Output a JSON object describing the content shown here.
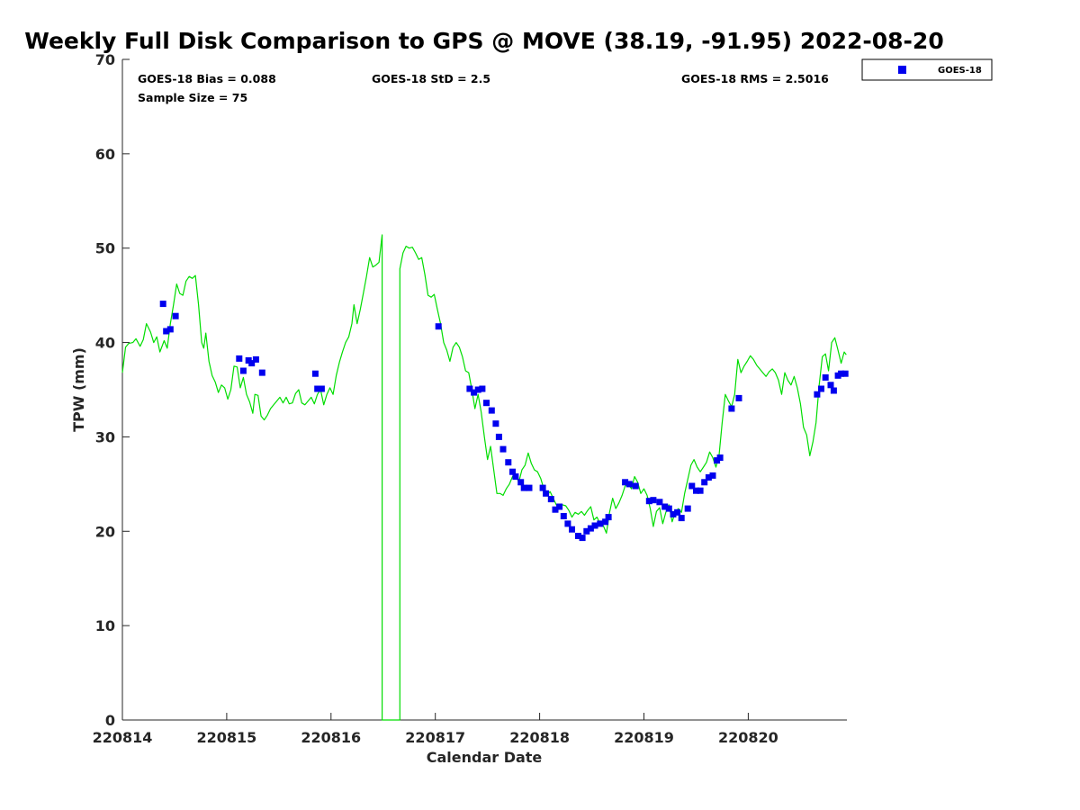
{
  "chart_data": {
    "type": "scatter",
    "title": "Weekly Full Disk Comparison to GPS @ MOVE (38.19, -91.95) 2022-08-20",
    "xlabel": "Calendar Date",
    "ylabel": "TPW (mm)",
    "xlim": [
      0,
      6.94
    ],
    "ylim": [
      0,
      70
    ],
    "x_ticks": [
      {
        "value": 0,
        "label": "220814"
      },
      {
        "value": 1,
        "label": "220815"
      },
      {
        "value": 2,
        "label": "220816"
      },
      {
        "value": 3,
        "label": "220817"
      },
      {
        "value": 4,
        "label": "220818"
      },
      {
        "value": 5,
        "label": "220819"
      },
      {
        "value": 6,
        "label": "220820"
      }
    ],
    "y_ticks": [
      0,
      10,
      20,
      30,
      40,
      50,
      60,
      70
    ],
    "stats": {
      "bias": "GOES-18 Bias = 0.088",
      "std": "GOES-18 StD = 2.5",
      "rms": "GOES-18 RMS = 2.5016",
      "sample": "Sample Size = 75"
    },
    "legend": {
      "label": "GOES-18",
      "location": "top-right outside"
    },
    "series": [
      {
        "name": "GPS",
        "style": "line",
        "color": "#00dd00",
        "points": [
          [
            0.0,
            36.8
          ],
          [
            0.03,
            39.5
          ],
          [
            0.06,
            39.9
          ],
          [
            0.1,
            40.0
          ],
          [
            0.13,
            40.4
          ],
          [
            0.17,
            39.6
          ],
          [
            0.2,
            40.3
          ],
          [
            0.23,
            42.0
          ],
          [
            0.27,
            41.1
          ],
          [
            0.3,
            40.0
          ],
          [
            0.33,
            40.6
          ],
          [
            0.36,
            39.0
          ],
          [
            0.4,
            40.2
          ],
          [
            0.43,
            39.4
          ],
          [
            0.46,
            42.0
          ],
          [
            0.49,
            44.0
          ],
          [
            0.52,
            46.2
          ],
          [
            0.55,
            45.2
          ],
          [
            0.58,
            45.0
          ],
          [
            0.61,
            46.5
          ],
          [
            0.64,
            47.0
          ],
          [
            0.67,
            46.8
          ],
          [
            0.7,
            47.1
          ],
          [
            0.73,
            44.0
          ],
          [
            0.76,
            40.0
          ],
          [
            0.78,
            39.4
          ],
          [
            0.8,
            41.0
          ],
          [
            0.83,
            38.0
          ],
          [
            0.86,
            36.5
          ],
          [
            0.89,
            35.8
          ],
          [
            0.92,
            34.7
          ],
          [
            0.95,
            35.5
          ],
          [
            0.98,
            35.2
          ],
          [
            1.01,
            34.0
          ],
          [
            1.04,
            35.0
          ],
          [
            1.07,
            37.5
          ],
          [
            1.1,
            37.4
          ],
          [
            1.13,
            35.2
          ],
          [
            1.16,
            36.3
          ],
          [
            1.19,
            34.5
          ],
          [
            1.22,
            33.7
          ],
          [
            1.25,
            32.5
          ],
          [
            1.27,
            34.5
          ],
          [
            1.3,
            34.4
          ],
          [
            1.33,
            32.2
          ],
          [
            1.36,
            31.8
          ],
          [
            1.39,
            32.3
          ],
          [
            1.42,
            33.0
          ],
          [
            1.45,
            33.4
          ],
          [
            1.48,
            33.8
          ],
          [
            1.51,
            34.2
          ],
          [
            1.54,
            33.6
          ],
          [
            1.57,
            34.2
          ],
          [
            1.6,
            33.5
          ],
          [
            1.63,
            33.6
          ],
          [
            1.66,
            34.6
          ],
          [
            1.69,
            35.0
          ],
          [
            1.72,
            33.6
          ],
          [
            1.75,
            33.4
          ],
          [
            1.78,
            33.8
          ],
          [
            1.81,
            34.2
          ],
          [
            1.84,
            33.5
          ],
          [
            1.87,
            34.5
          ],
          [
            1.9,
            35.0
          ],
          [
            1.93,
            33.4
          ],
          [
            1.96,
            34.5
          ],
          [
            1.99,
            35.2
          ],
          [
            2.02,
            34.5
          ],
          [
            2.05,
            36.5
          ],
          [
            2.08,
            37.9
          ],
          [
            2.11,
            39.0
          ],
          [
            2.14,
            40.0
          ],
          [
            2.17,
            40.6
          ],
          [
            2.2,
            42.0
          ],
          [
            2.22,
            44.0
          ],
          [
            2.25,
            42.0
          ],
          [
            2.28,
            43.5
          ],
          [
            2.31,
            45.2
          ],
          [
            2.34,
            47.0
          ],
          [
            2.37,
            49.0
          ],
          [
            2.4,
            48.0
          ],
          [
            2.43,
            48.2
          ],
          [
            2.46,
            48.5
          ],
          [
            2.49,
            51.4
          ],
          [
            2.49,
            0
          ],
          [
            2.66,
            0
          ],
          [
            2.66,
            47.8
          ],
          [
            2.69,
            49.5
          ],
          [
            2.72,
            50.2
          ],
          [
            2.75,
            50.0
          ],
          [
            2.78,
            50.1
          ],
          [
            2.81,
            49.5
          ],
          [
            2.84,
            48.8
          ],
          [
            2.87,
            49.0
          ],
          [
            2.9,
            47.2
          ],
          [
            2.93,
            45.0
          ],
          [
            2.96,
            44.8
          ],
          [
            2.99,
            45.1
          ],
          [
            3.02,
            43.5
          ],
          [
            3.05,
            42.0
          ],
          [
            3.08,
            40.0
          ],
          [
            3.11,
            39.2
          ],
          [
            3.14,
            38.0
          ],
          [
            3.17,
            39.5
          ],
          [
            3.2,
            40.0
          ],
          [
            3.23,
            39.5
          ],
          [
            3.26,
            38.5
          ],
          [
            3.29,
            37.0
          ],
          [
            3.32,
            36.8
          ],
          [
            3.35,
            35.0
          ],
          [
            3.38,
            33.0
          ],
          [
            3.41,
            34.5
          ],
          [
            3.44,
            32.6
          ],
          [
            3.47,
            30.0
          ],
          [
            3.5,
            27.6
          ],
          [
            3.53,
            29.0
          ],
          [
            3.56,
            26.5
          ],
          [
            3.59,
            24.0
          ],
          [
            3.62,
            24.0
          ],
          [
            3.65,
            23.8
          ],
          [
            3.68,
            24.5
          ],
          [
            3.71,
            25.0
          ],
          [
            3.74,
            25.8
          ],
          [
            3.77,
            26.0
          ],
          [
            3.8,
            25.2
          ],
          [
            3.83,
            26.5
          ],
          [
            3.86,
            27.0
          ],
          [
            3.89,
            28.3
          ],
          [
            3.92,
            27.2
          ],
          [
            3.95,
            26.5
          ],
          [
            3.98,
            26.3
          ],
          [
            4.01,
            25.6
          ],
          [
            4.04,
            24.5
          ],
          [
            4.07,
            23.8
          ],
          [
            4.1,
            24.2
          ],
          [
            4.13,
            23.5
          ],
          [
            4.16,
            22.8
          ],
          [
            4.19,
            22.5
          ],
          [
            4.22,
            22.8
          ],
          [
            4.25,
            22.7
          ],
          [
            4.28,
            22.2
          ],
          [
            4.31,
            21.5
          ],
          [
            4.34,
            22.0
          ],
          [
            4.37,
            21.8
          ],
          [
            4.4,
            22.1
          ],
          [
            4.43,
            21.7
          ],
          [
            4.46,
            22.2
          ],
          [
            4.49,
            22.6
          ],
          [
            4.52,
            21.2
          ],
          [
            4.55,
            21.5
          ],
          [
            4.58,
            20.8
          ],
          [
            4.61,
            20.6
          ],
          [
            4.64,
            19.8
          ],
          [
            4.67,
            22.0
          ],
          [
            4.7,
            23.5
          ],
          [
            4.73,
            22.4
          ],
          [
            4.76,
            23.0
          ],
          [
            4.79,
            23.8
          ],
          [
            4.82,
            24.8
          ],
          [
            4.85,
            25.0
          ],
          [
            4.88,
            24.5
          ],
          [
            4.91,
            25.8
          ],
          [
            4.94,
            25.2
          ],
          [
            4.97,
            24.0
          ],
          [
            5.0,
            24.5
          ],
          [
            5.03,
            23.8
          ],
          [
            5.06,
            22.4
          ],
          [
            5.09,
            20.5
          ],
          [
            5.12,
            22.1
          ],
          [
            5.15,
            22.5
          ],
          [
            5.18,
            20.8
          ],
          [
            5.21,
            22.0
          ],
          [
            5.24,
            22.8
          ],
          [
            5.27,
            21.0
          ],
          [
            5.3,
            22.0
          ],
          [
            5.33,
            22.4
          ],
          [
            5.36,
            22.0
          ],
          [
            5.39,
            24.0
          ],
          [
            5.42,
            25.5
          ],
          [
            5.45,
            27.0
          ],
          [
            5.48,
            27.6
          ],
          [
            5.51,
            26.8
          ],
          [
            5.54,
            26.3
          ],
          [
            5.57,
            26.8
          ],
          [
            5.6,
            27.3
          ],
          [
            5.63,
            28.4
          ],
          [
            5.66,
            27.8
          ],
          [
            5.69,
            26.8
          ],
          [
            5.72,
            28.0
          ],
          [
            5.75,
            31.5
          ],
          [
            5.78,
            34.5
          ],
          [
            5.81,
            33.8
          ],
          [
            5.84,
            33.2
          ],
          [
            5.87,
            34.5
          ],
          [
            5.9,
            38.2
          ],
          [
            5.93,
            36.8
          ],
          [
            5.96,
            37.5
          ],
          [
            5.99,
            38.0
          ],
          [
            6.02,
            38.6
          ],
          [
            6.05,
            38.2
          ],
          [
            6.08,
            37.6
          ],
          [
            6.11,
            37.2
          ],
          [
            6.14,
            36.8
          ],
          [
            6.17,
            36.4
          ],
          [
            6.2,
            36.9
          ],
          [
            6.23,
            37.2
          ],
          [
            6.26,
            36.8
          ],
          [
            6.29,
            36.0
          ],
          [
            6.32,
            34.5
          ],
          [
            6.35,
            36.8
          ],
          [
            6.38,
            36.0
          ],
          [
            6.41,
            35.5
          ],
          [
            6.44,
            36.4
          ],
          [
            6.47,
            35.2
          ],
          [
            6.5,
            33.5
          ],
          [
            6.53,
            31.0
          ],
          [
            6.56,
            30.2
          ],
          [
            6.59,
            28.0
          ],
          [
            6.62,
            29.5
          ],
          [
            6.65,
            31.5
          ],
          [
            6.68,
            35.5
          ],
          [
            6.71,
            38.5
          ],
          [
            6.74,
            38.8
          ],
          [
            6.77,
            37.0
          ],
          [
            6.8,
            40.0
          ],
          [
            6.83,
            40.5
          ],
          [
            6.86,
            39.2
          ],
          [
            6.89,
            37.8
          ],
          [
            6.92,
            39.0
          ],
          [
            6.94,
            38.7
          ]
        ]
      },
      {
        "name": "GOES-18",
        "style": "markers",
        "color": "#0000ee",
        "points": [
          [
            0.39,
            44.1
          ],
          [
            0.42,
            41.2
          ],
          [
            0.46,
            41.4
          ],
          [
            0.51,
            42.8
          ],
          [
            1.12,
            38.3
          ],
          [
            1.16,
            37.0
          ],
          [
            1.21,
            38.1
          ],
          [
            1.24,
            37.8
          ],
          [
            1.28,
            38.2
          ],
          [
            1.34,
            36.8
          ],
          [
            1.85,
            36.7
          ],
          [
            1.87,
            35.1
          ],
          [
            1.91,
            35.1
          ],
          [
            3.03,
            41.7
          ],
          [
            3.33,
            35.1
          ],
          [
            3.37,
            34.7
          ],
          [
            3.41,
            35.0
          ],
          [
            3.45,
            35.1
          ],
          [
            3.49,
            33.6
          ],
          [
            3.54,
            32.8
          ],
          [
            3.58,
            31.4
          ],
          [
            3.61,
            30.0
          ],
          [
            3.65,
            28.7
          ],
          [
            3.7,
            27.3
          ],
          [
            3.74,
            26.3
          ],
          [
            3.77,
            25.8
          ],
          [
            3.82,
            25.2
          ],
          [
            3.85,
            24.6
          ],
          [
            3.9,
            24.6
          ],
          [
            4.03,
            24.6
          ],
          [
            4.06,
            24.0
          ],
          [
            4.11,
            23.4
          ],
          [
            4.15,
            22.3
          ],
          [
            4.19,
            22.6
          ],
          [
            4.23,
            21.6
          ],
          [
            4.27,
            20.8
          ],
          [
            4.31,
            20.2
          ],
          [
            4.37,
            19.5
          ],
          [
            4.41,
            19.3
          ],
          [
            4.45,
            20.0
          ],
          [
            4.49,
            20.3
          ],
          [
            4.53,
            20.6
          ],
          [
            4.58,
            20.8
          ],
          [
            4.63,
            21.0
          ],
          [
            4.66,
            21.5
          ],
          [
            4.82,
            25.2
          ],
          [
            4.86,
            25.0
          ],
          [
            4.92,
            24.8
          ],
          [
            5.05,
            23.2
          ],
          [
            5.09,
            23.3
          ],
          [
            5.15,
            23.1
          ],
          [
            5.2,
            22.6
          ],
          [
            5.24,
            22.4
          ],
          [
            5.28,
            21.8
          ],
          [
            5.32,
            22.0
          ],
          [
            5.36,
            21.4
          ],
          [
            5.42,
            22.4
          ],
          [
            5.46,
            24.8
          ],
          [
            5.5,
            24.3
          ],
          [
            5.54,
            24.3
          ],
          [
            5.58,
            25.2
          ],
          [
            5.62,
            25.7
          ],
          [
            5.66,
            25.9
          ],
          [
            5.7,
            27.5
          ],
          [
            5.73,
            27.8
          ],
          [
            5.84,
            33.0
          ],
          [
            5.91,
            34.1
          ],
          [
            6.66,
            34.5
          ],
          [
            6.7,
            35.1
          ],
          [
            6.74,
            36.3
          ],
          [
            6.79,
            35.5
          ],
          [
            6.82,
            34.9
          ],
          [
            6.86,
            36.5
          ],
          [
            6.89,
            36.7
          ],
          [
            6.93,
            36.7
          ]
        ]
      }
    ]
  }
}
